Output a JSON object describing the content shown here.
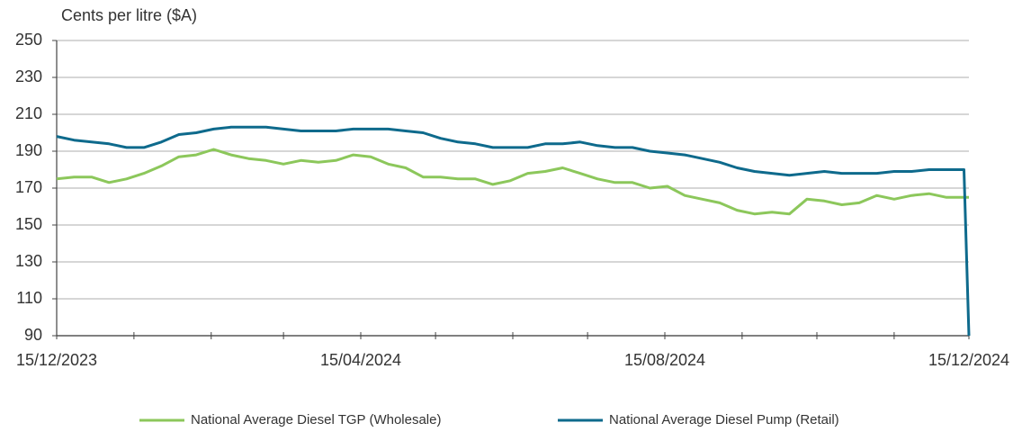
{
  "chart_data": {
    "type": "line",
    "y_label": "Cents per litre ($A)",
    "x": [
      "15/12/2023",
      "22/12/2023",
      "29/12/2023",
      "05/01/2024",
      "12/01/2024",
      "19/01/2024",
      "26/01/2024",
      "02/02/2024",
      "09/02/2024",
      "16/02/2024",
      "23/02/2024",
      "01/03/2024",
      "08/03/2024",
      "15/03/2024",
      "22/03/2024",
      "29/03/2024",
      "05/04/2024",
      "12/04/2024",
      "19/04/2024",
      "26/04/2024",
      "03/05/2024",
      "10/05/2024",
      "17/05/2024",
      "24/05/2024",
      "31/05/2024",
      "07/06/2024",
      "14/06/2024",
      "21/06/2024",
      "28/06/2024",
      "05/07/2024",
      "12/07/2024",
      "19/07/2024",
      "26/07/2024",
      "02/08/2024",
      "09/08/2024",
      "16/08/2024",
      "23/08/2024",
      "30/08/2024",
      "06/09/2024",
      "13/09/2024",
      "20/09/2024",
      "27/09/2024",
      "04/10/2024",
      "11/10/2024",
      "18/10/2024",
      "25/10/2024",
      "01/11/2024",
      "08/11/2024",
      "15/11/2024",
      "22/11/2024",
      "29/11/2024",
      "06/12/2024",
      "13/12/2024",
      "15/12/2024"
    ],
    "series": [
      {
        "name": "National Average Diesel TGP (Wholesale)",
        "color": "#8cc75b",
        "values": [
          175,
          176,
          176,
          173,
          175,
          178,
          182,
          187,
          188,
          191,
          188,
          186,
          185,
          183,
          185,
          184,
          185,
          188,
          187,
          183,
          181,
          176,
          176,
          175,
          175,
          172,
          174,
          178,
          179,
          181,
          178,
          175,
          173,
          173,
          170,
          171,
          166,
          164,
          162,
          158,
          156,
          157,
          156,
          164,
          163,
          161,
          162,
          166,
          164,
          166,
          167,
          165,
          165,
          165
        ]
      },
      {
        "name": "National Average Diesel Pump (Retail)",
        "color": "#0e6a8c",
        "values": [
          198,
          196,
          195,
          194,
          192,
          192,
          195,
          199,
          200,
          202,
          203,
          203,
          203,
          202,
          201,
          201,
          201,
          202,
          202,
          202,
          201,
          200,
          197,
          195,
          194,
          192,
          192,
          192,
          194,
          194,
          195,
          193,
          192,
          192,
          190,
          189,
          188,
          186,
          184,
          181,
          179,
          178,
          177,
          178,
          179,
          178,
          178,
          178,
          179,
          179,
          180,
          180,
          180,
          90
        ]
      }
    ],
    "xlim": [
      "15/12/2023",
      "15/12/2024"
    ],
    "xticks": [
      "15/12/2023",
      "15/04/2024",
      "15/08/2024",
      "15/12/2024"
    ],
    "xminor_ticks": [
      "15/01/2024",
      "15/02/2024",
      "15/03/2024",
      "15/05/2024",
      "15/06/2024",
      "15/07/2024",
      "15/09/2024",
      "15/10/2024",
      "15/11/2024"
    ],
    "ylim": [
      90,
      250
    ],
    "yticks": [
      90,
      110,
      130,
      150,
      170,
      190,
      210,
      230,
      250
    ],
    "grid": true,
    "legend": "bottom"
  }
}
